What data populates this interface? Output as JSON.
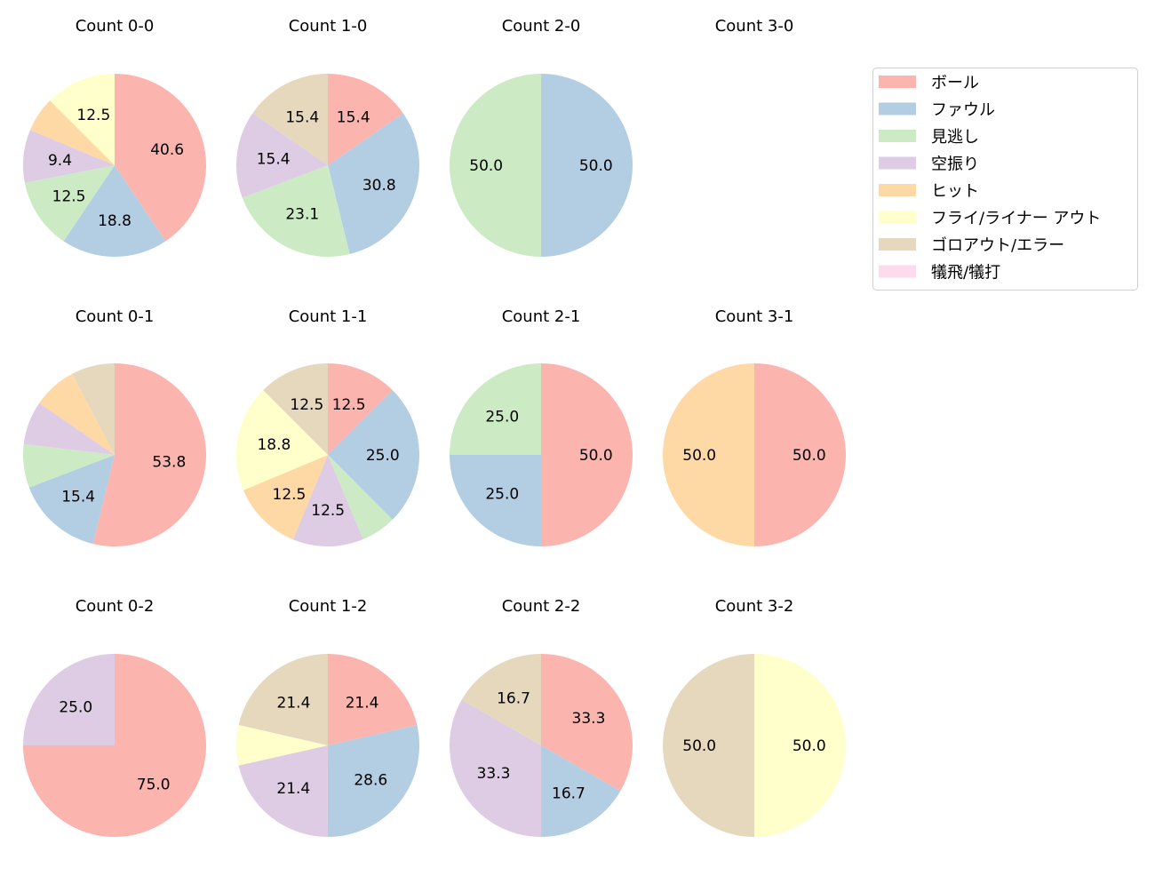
{
  "chart_data": {
    "type": "pie",
    "start": "top",
    "direction": "clockwise",
    "label_format": "percent, 1 decimal, small slices unlabeled",
    "legend": {
      "placement": "top-right",
      "entries": [
        "ボール",
        "ファウル",
        "見逃し",
        "空振り",
        "ヒット",
        "フライ/ライナー アウト",
        "ゴロアウト/エラー",
        "犠飛/犠打"
      ],
      "colors": [
        "#fbb4ae",
        "#b3cde3",
        "#ccebc5",
        "#decbe4",
        "#fed9a6",
        "#ffffcc",
        "#e5d8bd",
        "#fddaec"
      ]
    },
    "pies": [
      {
        "title": "Count 0-0",
        "values": [
          40.6,
          18.8,
          12.5,
          9.4,
          6.2,
          12.5,
          0,
          0
        ]
      },
      {
        "title": "Count 1-0",
        "values": [
          15.4,
          30.8,
          23.1,
          15.4,
          0,
          0,
          15.4,
          0
        ]
      },
      {
        "title": "Count 2-0",
        "values": [
          0,
          50.0,
          50.0,
          0,
          0,
          0,
          0,
          0
        ]
      },
      {
        "title": "Count 3-0",
        "values": [
          0,
          0,
          0,
          0,
          0,
          0,
          0,
          0
        ]
      },
      {
        "title": "Count 0-1",
        "values": [
          53.8,
          15.4,
          7.7,
          7.7,
          7.7,
          0,
          7.7,
          0
        ]
      },
      {
        "title": "Count 1-1",
        "values": [
          12.5,
          25.0,
          6.2,
          12.5,
          12.5,
          18.8,
          12.5,
          0
        ]
      },
      {
        "title": "Count 2-1",
        "values": [
          50.0,
          25.0,
          25.0,
          0,
          0,
          0,
          0,
          0
        ]
      },
      {
        "title": "Count 3-1",
        "values": [
          50.0,
          0,
          0,
          0,
          50.0,
          0,
          0,
          0
        ]
      },
      {
        "title": "Count 0-2",
        "values": [
          75.0,
          0,
          0,
          25.0,
          0,
          0,
          0,
          0
        ]
      },
      {
        "title": "Count 1-2",
        "values": [
          21.4,
          28.6,
          0,
          21.4,
          0,
          7.1,
          21.4,
          0
        ]
      },
      {
        "title": "Count 2-2",
        "values": [
          33.3,
          16.7,
          0,
          33.3,
          0,
          0,
          16.7,
          0
        ]
      },
      {
        "title": "Count 3-2",
        "values": [
          0,
          0,
          0,
          0,
          0,
          50.0,
          50.0,
          0
        ]
      }
    ]
  }
}
